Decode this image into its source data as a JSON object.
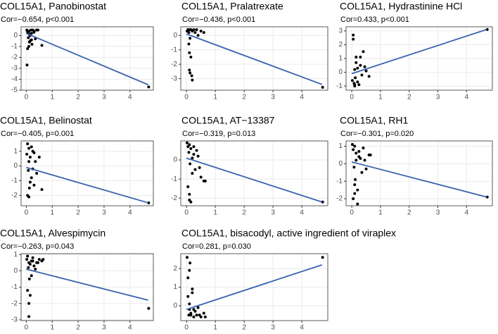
{
  "chart_data": [
    {
      "type": "scatter",
      "title": "COL15A1, Panobinostat",
      "subtitle": "Cor=−0.654, p<0.001",
      "x": [
        0.02,
        0.05,
        0.08,
        0.1,
        0.12,
        0.15,
        0.18,
        0.2,
        0.22,
        0.25,
        0.3,
        0.35,
        0.4,
        0.05,
        0.1,
        0.15,
        0.2,
        0.3,
        0.45,
        0.6,
        0.03,
        0.12,
        0.08,
        4.72
      ],
      "values": [
        0.5,
        0.3,
        -0.2,
        0.4,
        0.1,
        -0.5,
        0.5,
        0.2,
        -0.8,
        0.5,
        0.4,
        -0.3,
        0.5,
        -1.2,
        -1.0,
        0.0,
        -0.4,
        0.3,
        0.5,
        -0.9,
        -2.7,
        -0.6,
        0.2,
        -4.7
      ],
      "fit": {
        "x": [
          0,
          4.7
        ],
        "y": [
          0.2,
          -4.5
        ]
      },
      "xlim": [
        -0.2,
        4.9
      ],
      "ylim": [
        -5,
        0.8
      ],
      "xticks": [
        0,
        1,
        2,
        3,
        4
      ],
      "yticks": [
        0,
        -1,
        -2,
        -3,
        -4,
        -5
      ],
      "point_color": "#000000",
      "line_color": "#3a63ad",
      "grid": true
    },
    {
      "type": "scatter",
      "title": "COL15A1, Pralatrexate",
      "subtitle": "Cor=−0.436, p<0.001",
      "x": [
        0.02,
        0.05,
        0.08,
        0.1,
        0.12,
        0.15,
        0.2,
        0.25,
        0.3,
        0.35,
        0.4,
        0.5,
        0.6,
        0.1,
        0.15,
        0.12,
        0.18,
        0.2,
        0.08,
        0.1,
        4.72
      ],
      "values": [
        0.3,
        0.4,
        0.2,
        0.4,
        -0.2,
        0.4,
        0.3,
        0.4,
        0.2,
        0.4,
        0.0,
        0.3,
        0.2,
        -1.2,
        -1.5,
        -2.6,
        -2.8,
        -3.1,
        -0.6,
        -2.4,
        -3.6
      ],
      "fit": {
        "x": [
          0,
          4.7
        ],
        "y": [
          0.1,
          -3.4
        ]
      },
      "xlim": [
        -0.2,
        4.9
      ],
      "ylim": [
        -3.8,
        0.6
      ],
      "xticks": [
        0,
        1,
        2,
        3,
        4
      ],
      "yticks": [
        0,
        -1,
        -2,
        -3
      ],
      "point_color": "#000000",
      "line_color": "#3a63ad",
      "grid": true
    },
    {
      "type": "scatter",
      "title": "COL15A1, Hydrastinine HCl",
      "subtitle": "Cor=0.433, p<0.001",
      "x": [
        0.02,
        0.05,
        0.08,
        0.1,
        0.12,
        0.15,
        0.2,
        0.25,
        0.3,
        0.35,
        0.4,
        0.5,
        0.6,
        0.05,
        0.1,
        0.15,
        0.2,
        0.1,
        0.3,
        0.45,
        4.72
      ],
      "values": [
        -0.6,
        2.7,
        -0.8,
        0.2,
        -0.4,
        1.1,
        0.3,
        -0.9,
        0.5,
        -0.2,
        1.5,
        0.1,
        -0.3,
        2.4,
        -0.9,
        0.7,
        -0.7,
        -1.0,
        1.1,
        0.4,
        3.1
      ],
      "fit": {
        "x": [
          0,
          4.7
        ],
        "y": [
          -0.1,
          3.1
        ]
      },
      "xlim": [
        -0.2,
        4.9
      ],
      "ylim": [
        -1.3,
        3.3
      ],
      "xticks": [
        0,
        1,
        2,
        3,
        4
      ],
      "yticks": [
        -1,
        0,
        1,
        2,
        3
      ],
      "point_color": "#000000",
      "line_color": "#3a63ad",
      "grid": true
    },
    {
      "type": "scatter",
      "title": "COL15A1, Belinostat",
      "subtitle": "Cor=−0.405, p=0.001",
      "x": [
        0.02,
        0.05,
        0.08,
        0.1,
        0.12,
        0.15,
        0.2,
        0.25,
        0.3,
        0.35,
        0.4,
        0.5,
        0.6,
        0.05,
        0.1,
        0.15,
        0.2,
        0.25,
        0.1,
        0.3,
        4.72
      ],
      "values": [
        0.8,
        1.5,
        -0.3,
        1.2,
        -1.5,
        0.6,
        -0.8,
        1.0,
        -1.3,
        0.3,
        -0.5,
        0.6,
        -1.6,
        -2.0,
        0.3,
        -1.1,
        1.3,
        -0.2,
        -2.1,
        0.9,
        -2.5
      ],
      "fit": {
        "x": [
          0,
          4.7
        ],
        "y": [
          -0.1,
          -2.5
        ]
      },
      "xlim": [
        -0.2,
        4.9
      ],
      "ylim": [
        -2.7,
        1.7
      ],
      "xticks": [
        0,
        1,
        2,
        3,
        4
      ],
      "yticks": [
        1,
        0,
        -1,
        -2
      ],
      "point_color": "#000000",
      "line_color": "#3a63ad",
      "grid": true
    },
    {
      "type": "scatter",
      "title": "COL15A1, AT−13387",
      "subtitle": "Cor=−0.319, p=0.013",
      "x": [
        0.02,
        0.05,
        0.08,
        0.1,
        0.12,
        0.15,
        0.2,
        0.25,
        0.3,
        0.35,
        0.4,
        0.5,
        0.6,
        0.05,
        0.1,
        0.15,
        0.2,
        0.25,
        0.1,
        0.45,
        0.65,
        4.72
      ],
      "values": [
        0.9,
        0.7,
        0.4,
        0.8,
        -0.2,
        0.6,
        0.1,
        0.7,
        -0.5,
        0.5,
        0.2,
        -0.9,
        -1.1,
        -1.4,
        -2.1,
        -2.2,
        -0.7,
        0.3,
        -1.8,
        -0.4,
        -1.1,
        -2.2
      ],
      "fit": {
        "x": [
          0,
          4.7
        ],
        "y": [
          0.1,
          -2.2
        ]
      },
      "xlim": [
        -0.2,
        4.9
      ],
      "ylim": [
        -2.4,
        1.0
      ],
      "xticks": [
        0,
        1,
        2,
        3,
        4
      ],
      "yticks": [
        0,
        -1,
        -2
      ],
      "point_color": "#000000",
      "line_color": "#3a63ad",
      "grid": true
    },
    {
      "type": "scatter",
      "title": "COL15A1, RH1",
      "subtitle": "Cor=−0.301, p=0.020",
      "x": [
        0.02,
        0.05,
        0.08,
        0.1,
        0.12,
        0.15,
        0.2,
        0.25,
        0.3,
        0.35,
        0.4,
        0.5,
        0.6,
        0.05,
        0.1,
        0.15,
        0.2,
        0.25,
        0.1,
        0.45,
        0.65,
        4.72
      ],
      "values": [
        1.1,
        0.8,
        -0.2,
        1.0,
        -0.9,
        0.6,
        -1.5,
        0.4,
        0.3,
        -0.5,
        0.9,
        -0.3,
        0.5,
        -2.0,
        -1.2,
        0.2,
        -2.3,
        0.7,
        -1.7,
        0.2,
        0.5,
        -1.9
      ],
      "fit": {
        "x": [
          0,
          4.7
        ],
        "y": [
          0.1,
          -1.9
        ]
      },
      "xlim": [
        -0.2,
        4.9
      ],
      "ylim": [
        -2.4,
        1.3
      ],
      "xticks": [
        0,
        1,
        2,
        3,
        4
      ],
      "yticks": [
        1,
        0,
        -1,
        -2
      ],
      "point_color": "#000000",
      "line_color": "#3a63ad",
      "grid": true
    },
    {
      "type": "scatter",
      "title": "COL15A1, Alvespimycin",
      "subtitle": "Cor=−0.263, p=0.043",
      "x": [
        0.02,
        0.05,
        0.08,
        0.1,
        0.12,
        0.15,
        0.2,
        0.25,
        0.3,
        0.35,
        0.4,
        0.5,
        0.6,
        0.05,
        0.1,
        0.15,
        0.2,
        0.25,
        0.1,
        0.45,
        0.65,
        4.72
      ],
      "values": [
        0.7,
        0.9,
        0.2,
        0.5,
        -0.5,
        0.4,
        0.6,
        0.8,
        0.3,
        0.1,
        0.5,
        0.7,
        0.6,
        -1.2,
        -2.8,
        -1.5,
        -0.3,
        0.6,
        -2.0,
        0.5,
        0.7,
        -2.3
      ],
      "fit": {
        "x": [
          0,
          4.7
        ],
        "y": [
          0.1,
          -1.8
        ]
      },
      "xlim": [
        -0.2,
        4.9
      ],
      "ylim": [
        -3.05,
        1.05
      ],
      "xticks": [
        0,
        1,
        2,
        3,
        4
      ],
      "yticks": [
        1,
        0,
        -1,
        -2,
        -3
      ],
      "point_color": "#000000",
      "line_color": "#3a63ad",
      "grid": true
    },
    {
      "type": "scatter",
      "title": "COL15A1, bisacodyl, active ingredient of viraplex",
      "subtitle": "Cor=0.281, p=0.030",
      "x": [
        0.02,
        0.05,
        0.08,
        0.1,
        0.12,
        0.15,
        0.2,
        0.25,
        0.3,
        0.35,
        0.4,
        0.5,
        0.6,
        0.05,
        0.1,
        0.15,
        0.2,
        0.25,
        0.1,
        0.45,
        0.65,
        4.72
      ],
      "values": [
        2.6,
        0.5,
        -0.5,
        -0.2,
        2.3,
        -0.4,
        0.9,
        -0.6,
        -0.3,
        -0.5,
        -0.1,
        -0.6,
        -0.4,
        1.5,
        0.1,
        -0.5,
        0.7,
        -0.2,
        1.9,
        -0.5,
        -0.6,
        2.6
      ],
      "fit": {
        "x": [
          0,
          4.7
        ],
        "y": [
          -0.2,
          2.2
        ]
      },
      "xlim": [
        -0.2,
        4.9
      ],
      "ylim": [
        -0.8,
        2.8
      ],
      "xticks": [
        0,
        1,
        2,
        3,
        4
      ],
      "yticks": [
        0,
        1,
        2
      ],
      "point_color": "#000000",
      "line_color": "#3a63ad",
      "grid": true
    }
  ]
}
